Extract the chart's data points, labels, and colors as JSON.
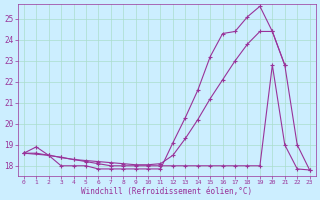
{
  "background_color": "#cceeff",
  "grid_color": "#aaddcc",
  "line_color": "#993399",
  "marker": "+",
  "xlabel": "Windchill (Refroidissement éolien,°C)",
  "ylim": [
    17.5,
    25.7
  ],
  "xlim": [
    -0.5,
    23.5
  ],
  "yticks": [
    18,
    19,
    20,
    21,
    22,
    23,
    24,
    25
  ],
  "xticks": [
    0,
    1,
    2,
    3,
    4,
    5,
    6,
    7,
    8,
    9,
    10,
    11,
    12,
    13,
    14,
    15,
    16,
    17,
    18,
    19,
    20,
    21,
    22,
    23
  ],
  "series": [
    {
      "x": [
        0,
        1,
        2,
        3,
        4,
        5,
        6,
        7,
        8,
        9,
        10,
        11,
        12,
        13,
        14,
        15,
        16,
        17,
        18,
        19,
        20,
        21
      ],
      "y": [
        18.6,
        18.9,
        18.5,
        18.0,
        18.0,
        18.0,
        17.85,
        17.85,
        17.85,
        17.85,
        17.85,
        17.85,
        19.1,
        20.3,
        21.6,
        23.2,
        24.3,
        24.4,
        25.1,
        25.6,
        24.4,
        22.8
      ]
    },
    {
      "x": [
        0,
        1,
        2,
        3,
        4,
        5,
        6,
        7,
        8,
        9,
        10,
        11,
        12,
        13,
        14,
        15,
        16,
        17,
        18,
        19,
        20,
        21,
        22,
        23
      ],
      "y": [
        18.6,
        18.6,
        18.5,
        18.4,
        18.3,
        18.25,
        18.2,
        18.15,
        18.1,
        18.05,
        18.05,
        18.1,
        18.5,
        19.3,
        20.2,
        21.2,
        22.1,
        23.0,
        23.8,
        24.4,
        24.4,
        22.8,
        19.0,
        17.8
      ]
    },
    {
      "x": [
        0,
        2,
        3,
        4,
        5,
        6,
        7,
        8,
        9,
        10,
        11,
        12,
        13,
        14,
        15,
        16,
        17,
        18,
        19,
        20,
        21,
        22,
        23
      ],
      "y": [
        18.6,
        18.5,
        18.4,
        18.3,
        18.2,
        18.1,
        18.0,
        18.0,
        18.0,
        18.0,
        18.0,
        18.0,
        18.0,
        18.0,
        18.0,
        18.0,
        18.0,
        18.0,
        18.0,
        22.8,
        19.0,
        17.85,
        17.8
      ]
    }
  ]
}
